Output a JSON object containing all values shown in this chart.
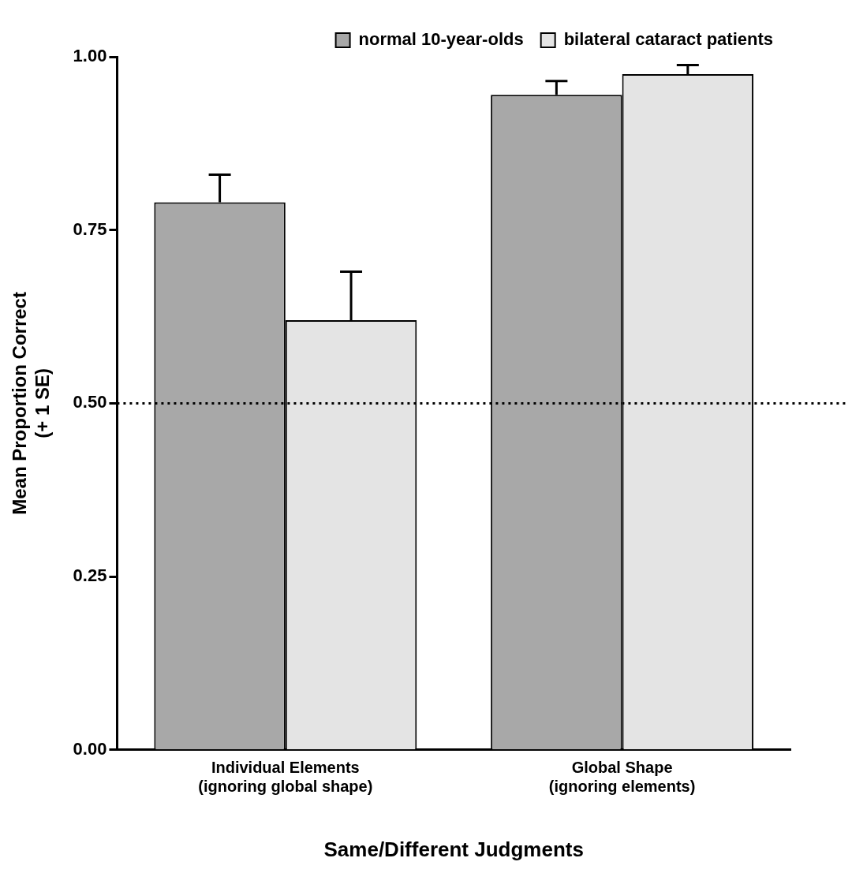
{
  "chart_data": {
    "type": "bar",
    "xlabel": "Same/Different Judgments",
    "ylabel": "Mean Proportion Correct\n(+ 1 SE)",
    "categories": [
      "Individual Elements\n(ignoring global shape)",
      "Global Shape\n(ignoring elements)"
    ],
    "series": [
      {
        "name": "normal 10-year-olds",
        "color": "#a8a8a8",
        "values": [
          0.79,
          0.945
        ],
        "errors": [
          [
            0.79,
            0.83
          ],
          [
            0.945,
            0.965
          ]
        ]
      },
      {
        "name": "bilateral cataract patients",
        "color": "#e4e4e4",
        "values": [
          0.62,
          0.975
        ],
        "errors": [
          [
            0.62,
            0.69
          ],
          [
            0.975,
            0.988
          ]
        ]
      }
    ],
    "ylim": [
      0,
      1
    ],
    "yticks": [
      {
        "value": 0,
        "label": "0.00"
      },
      {
        "value": 0.25,
        "label": "0.25"
      },
      {
        "value": 0.5,
        "label": "0.50"
      },
      {
        "value": 0.75,
        "label": "0.75"
      },
      {
        "value": 1,
        "label": "1.00"
      }
    ],
    "ref_lines": [
      {
        "axis": "y",
        "value": 0.5,
        "line_style": "dotted",
        "color": "#000000"
      }
    ],
    "grid": false,
    "legend": "top right"
  }
}
